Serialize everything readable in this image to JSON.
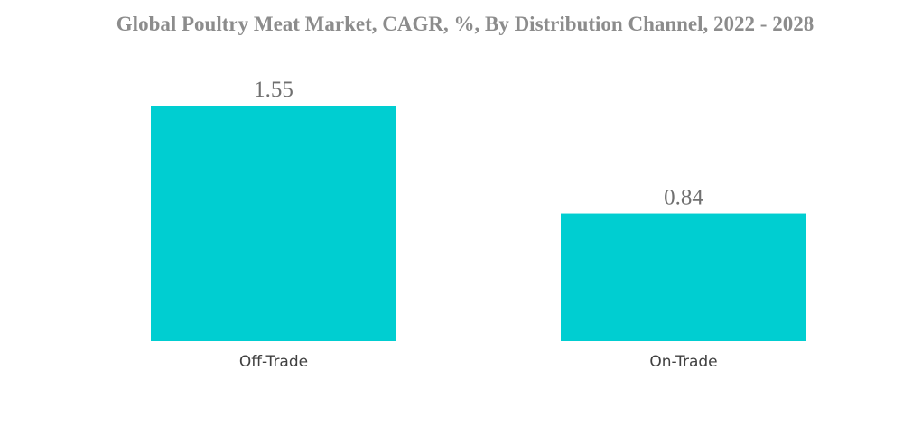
{
  "chart_data": {
    "type": "bar",
    "title": "Global Poultry Meat Market, CAGR, %, By Distribution Channel, 2022 - 2028",
    "categories": [
      "Off-Trade",
      "On-Trade"
    ],
    "values": [
      1.55,
      0.84
    ],
    "data_labels": [
      "1.55",
      "0.84"
    ],
    "bar_color": "#00CED1",
    "xlabel": "",
    "ylabel": "",
    "ylim": [
      0,
      1.55
    ],
    "grid": false,
    "legend": "none"
  }
}
